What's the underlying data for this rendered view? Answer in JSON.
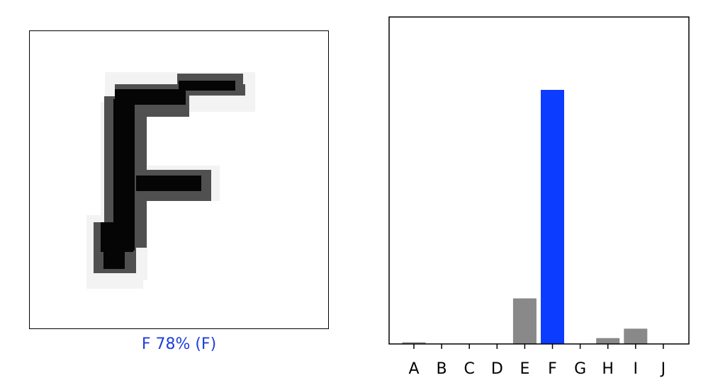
{
  "prediction": {
    "caption": "F 78% (F)",
    "caption_color": "#1f3fdc"
  },
  "chart_data": {
    "type": "bar",
    "categories": [
      "A",
      "B",
      "C",
      "D",
      "E",
      "F",
      "G",
      "H",
      "I",
      "J"
    ],
    "values": [
      0.005,
      0.001,
      0.001,
      0.001,
      0.14,
      0.78,
      0.001,
      0.018,
      0.047,
      0.001
    ],
    "ylim": [
      0,
      0.78
    ],
    "highlight_index": 5,
    "bar_color": "#898989",
    "highlight_color": "#0c3cff",
    "title": "",
    "xlabel": "",
    "ylabel": "",
    "grid": false
  }
}
